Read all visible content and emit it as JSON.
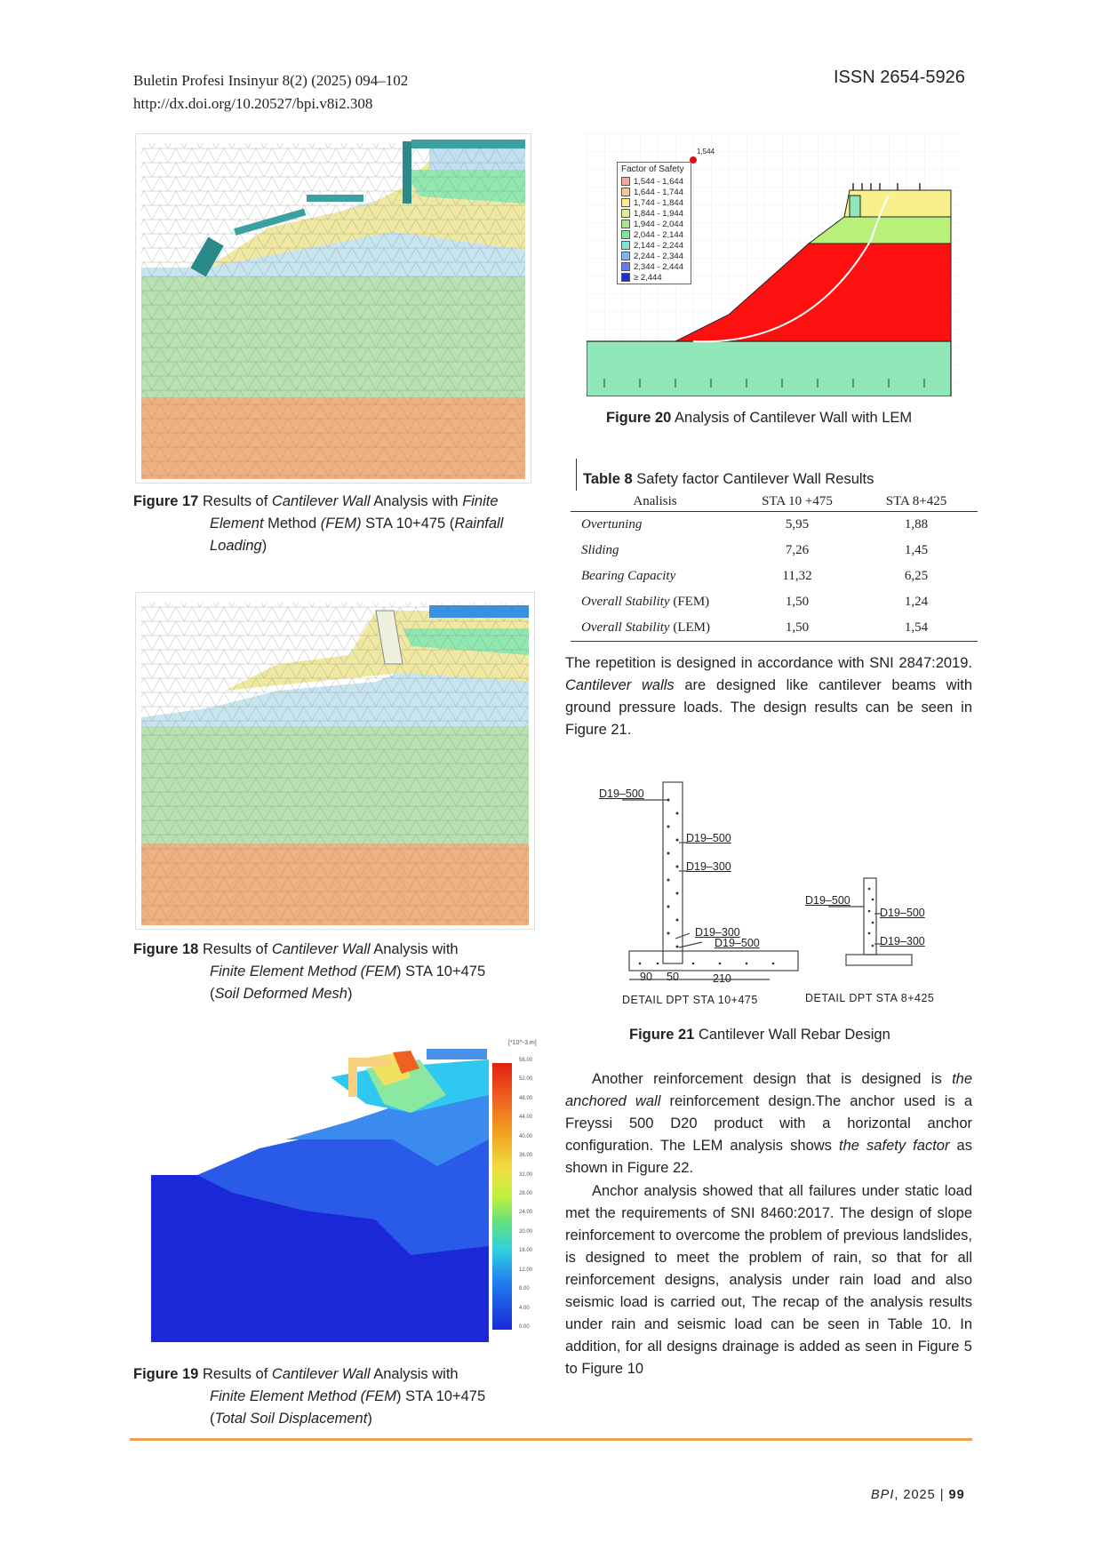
{
  "header": {
    "journal": "Buletin Profesi Insinyur 8(2) (2025) 094–102",
    "doi": "http://dx.doi.org/10.20527/bpi.v8i2.308",
    "issn": "ISSN 2654-5926"
  },
  "fig17": {
    "num": "Figure 17",
    "t1": " Results of ",
    "t2": "Cantilever Wall",
    "t3": " Analysis with ",
    "t4": "Finite",
    "t5": "Element",
    "t6": " Method ",
    "t7": "(FEM)",
    "t8": " STA 10+475 (",
    "t9": "Rainfall",
    "t10": "Loading",
    "t11": ")"
  },
  "fig18": {
    "num": "Figure 18",
    "t1": " Results  of ",
    "t2": "Cantilever Wall",
    "t3": " Analysis with",
    "t4": "Finite Element Method (FEM",
    "t5": ") STA 10+475",
    "t6": "(",
    "t7": "Soil Deformed Mesh",
    "t8": ")"
  },
  "fig19": {
    "num": "Figure 19",
    "t1": " Results  of ",
    "t2": "Cantilever Wall",
    "t3": "  Analysis with",
    "t4": "Finite Element Method (FEM",
    "t5": ") STA 10+475",
    "t6": "(",
    "t7": "Total Soil Displacement",
    "t8": ")",
    "legend_unit": "[*10^-3 m]",
    "legend_values": [
      "56.00",
      "52.00",
      "48.00",
      "44.00",
      "40.00",
      "36.00",
      "32.00",
      "28.00",
      "24.00",
      "20.00",
      "16.00",
      "12.00",
      "8.00",
      "4.00",
      "0.00"
    ]
  },
  "fig20": {
    "num": "Figure 20",
    "title": " Analysis of Cantilever Wall with LEM",
    "legend_title": "Factor of Safety",
    "min_label": "1,544",
    "legend": [
      {
        "label": "1,544 - 1,644",
        "color": "#f4a6a6"
      },
      {
        "label": "1,644 - 1,744",
        "color": "#f6c88a"
      },
      {
        "label": "1,744 - 1,844",
        "color": "#f7f08a"
      },
      {
        "label": "1,844 - 1,944",
        "color": "#d9f08a"
      },
      {
        "label": "1,944 - 2,044",
        "color": "#a8e88a"
      },
      {
        "label": "2,044 - 2,144",
        "color": "#7fe0a0"
      },
      {
        "label": "2,144 - 2,244",
        "color": "#7fe0d6"
      },
      {
        "label": "2,244 - 2,344",
        "color": "#7fb8f0"
      },
      {
        "label": "2,344 - 2,444",
        "color": "#5f7ff0"
      },
      {
        "label": "≥ 2,444",
        "color": "#2030d0"
      }
    ]
  },
  "table8": {
    "caption_num": "Table 8",
    "caption": "  Safety factor Cantilever Wall Results",
    "headers": [
      "Analisis",
      "STA 10 +475",
      "STA 8+425"
    ],
    "rows": [
      {
        "label": "Overtuning",
        "suffix": "",
        "a": "5,95",
        "b": "1,88"
      },
      {
        "label": "Sliding",
        "suffix": "",
        "a": "7,26",
        "b": "1,45"
      },
      {
        "label": "Bearing Capacity",
        "suffix": "",
        "a": "11,32",
        "b": "6,25"
      },
      {
        "label": "Overall Stability",
        "suffix": " (FEM)",
        "a": "1,50",
        "b": "1,24"
      },
      {
        "label": "Overall Stability",
        "suffix": " (LEM)",
        "a": "1,50",
        "b": "1,54"
      }
    ]
  },
  "para1": {
    "t1": "The repetition is designed in accordance with SNI 2847:2019. ",
    "t2": "Cantilever walls",
    "t3": " are designed like cantilever beams with ground pressure loads. The design results can be seen in Figure 21."
  },
  "fig21": {
    "num": "Figure 21",
    "title": " Cantilever Wall Rebar Design",
    "labels": {
      "a1": "D19–500",
      "a2": "D19–500",
      "a3": "D19–300",
      "a4": "D19–300",
      "a5": "D19–500",
      "d90": "90",
      "d50": "50",
      "d210": "210",
      "detail1": "DETAIL DPT STA 10+475",
      "b1": "D19–500",
      "b2": "D19–500",
      "b3": "D19–300",
      "detail2": "DETAIL DPT STA 8+425"
    }
  },
  "para2": {
    "t1": "Another reinforcement design that is designed is ",
    "t2": "the anchored wall",
    "t3": "  reinforcement design.The anchor used is a Freyssi 500 D20 product with a horizontal anchor configuration. The LEM analysis shows ",
    "t4": " the safety factor",
    "t5": " as shown in Figure 22."
  },
  "para3": {
    "text": "Anchor analysis showed that all failures under static load met the requirements of SNI 8460:2017. The design of slope reinforcement to overcome the problem of previous landslides, is designed to meet the problem of rain, so that for all reinforcement designs, analysis under rain load and also seismic load is carried out, The recap of the analysis results under rain and seismic load can be seen in  Table 10. In addition, for all designs drainage is added as seen in  Figure 5 to Figure 10"
  },
  "footer": {
    "journal": "BPI",
    "year": ", 2025 | ",
    "page": "99"
  },
  "colors": {
    "rule": "#f0a050",
    "fos_red": "#ff1010",
    "fos_green": "#b8f07a",
    "fos_yellow": "#f8f08a",
    "soil_green": "#90e8b8"
  }
}
